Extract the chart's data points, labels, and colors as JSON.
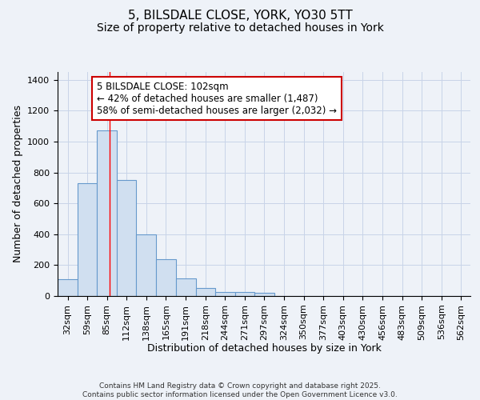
{
  "title_line1": "5, BILSDALE CLOSE, YORK, YO30 5TT",
  "title_line2": "Size of property relative to detached houses in York",
  "xlabel": "Distribution of detached houses by size in York",
  "ylabel": "Number of detached properties",
  "bar_edges": [
    32,
    59,
    85,
    112,
    138,
    165,
    191,
    218,
    244,
    271,
    297,
    324,
    350,
    377,
    403,
    430,
    456,
    483,
    509,
    536,
    562
  ],
  "bar_heights": [
    110,
    730,
    1070,
    750,
    400,
    240,
    115,
    50,
    25,
    25,
    20,
    0,
    0,
    0,
    0,
    0,
    0,
    0,
    0,
    0,
    0
  ],
  "bar_color": "#d0dff0",
  "bar_edge_color": "#6699cc",
  "grid_color": "#c8d4e8",
  "bg_color": "#eef2f8",
  "red_line_x": 102,
  "annotation_text": "5 BILSDALE CLOSE: 102sqm\n← 42% of detached houses are smaller (1,487)\n58% of semi-detached houses are larger (2,032) →",
  "annotation_box_color": "#ffffff",
  "annotation_box_edge": "#cc0000",
  "ylim": [
    0,
    1450
  ],
  "yticks": [
    0,
    200,
    400,
    600,
    800,
    1000,
    1200,
    1400
  ],
  "footer_line1": "Contains HM Land Registry data © Crown copyright and database right 2025.",
  "footer_line2": "Contains public sector information licensed under the Open Government Licence v3.0.",
  "title_fontsize": 11,
  "subtitle_fontsize": 10,
  "axis_label_fontsize": 9,
  "tick_fontsize": 8,
  "annotation_fontsize": 8.5
}
